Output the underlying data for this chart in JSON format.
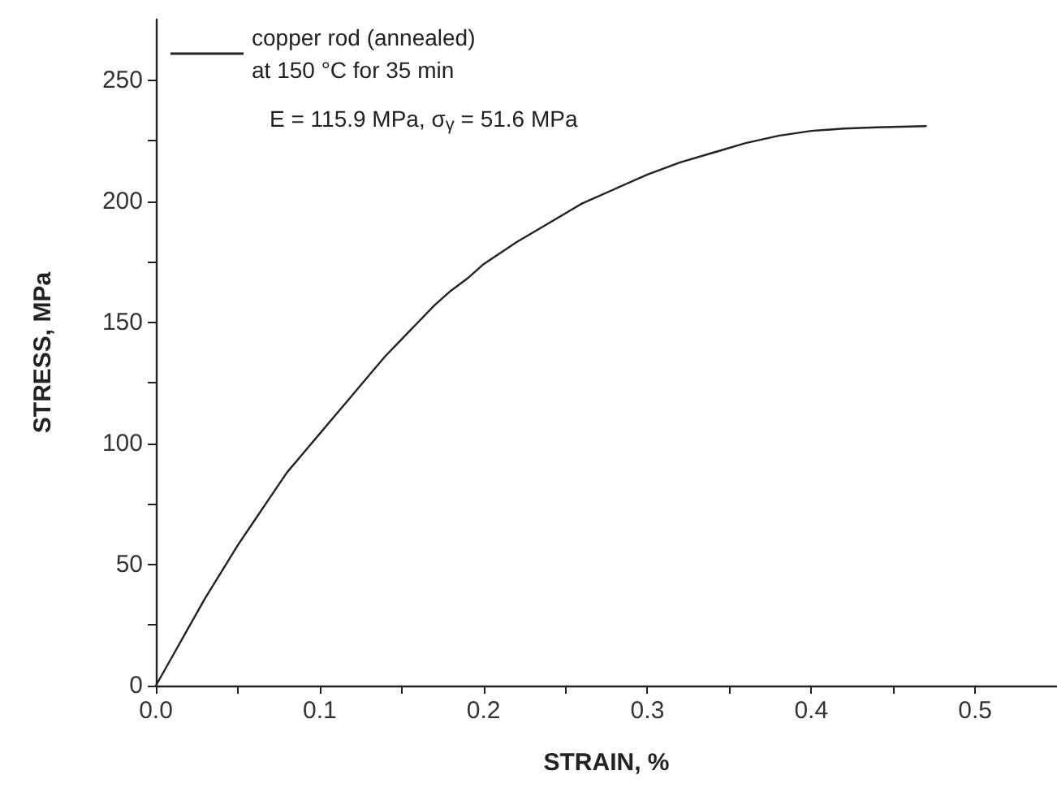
{
  "chart_data": {
    "type": "line",
    "xlabel": "STRAIN, %",
    "ylabel": "STRESS, MPa",
    "annotations": [
      "E = 115.9 MPa, σ$_{γ}$ = 51.6 MPa"
    ],
    "x": [
      0,
      0.01,
      0.02,
      0.03,
      0.04,
      0.05,
      0.06,
      0.07,
      0.08,
      0.09,
      0.1,
      0.11,
      0.12,
      0.13,
      0.14,
      0.15,
      0.16,
      0.17,
      0.18,
      0.19,
      0.2,
      0.22,
      0.24,
      0.26,
      0.28,
      0.3,
      0.32,
      0.34,
      0.36,
      0.38,
      0.4,
      0.42,
      0.44,
      0.47
    ],
    "series": [
      {
        "name": "copper rod (annealed)\nat 150 °C for 35 min",
        "color": "#222222",
        "values": [
          0,
          12,
          24,
          36,
          47,
          58,
          68,
          78,
          88,
          96,
          104,
          112,
          120,
          128,
          136,
          143,
          150,
          157,
          163,
          168,
          174,
          183,
          191,
          199,
          205,
          211,
          216,
          220,
          224,
          227,
          229,
          230,
          230.5,
          231
        ]
      }
    ],
    "xlim": [
      0,
      0.55
    ],
    "xticks": [
      {
        "value": 0,
        "label": "0.0"
      },
      {
        "value": 0.05,
        "label": null
      },
      0.1,
      {
        "value": 0.15,
        "label": null
      },
      0.2,
      {
        "value": 0.25,
        "label": null
      },
      0.3,
      {
        "value": 0.35,
        "label": null
      },
      0.4,
      {
        "value": 0.45,
        "label": null
      },
      0.5
    ],
    "ylim": [
      0,
      275
    ],
    "yticks": [
      0,
      {
        "value": 25,
        "label": null
      },
      50,
      {
        "value": 75,
        "label": null
      },
      100,
      {
        "value": 125,
        "label": null
      },
      150,
      {
        "value": 175,
        "label": null
      },
      200,
      {
        "value": 225,
        "label": null
      },
      250
    ],
    "legend": "top left",
    "grid": false,
    "marker": "none",
    "line_style": "solid"
  }
}
